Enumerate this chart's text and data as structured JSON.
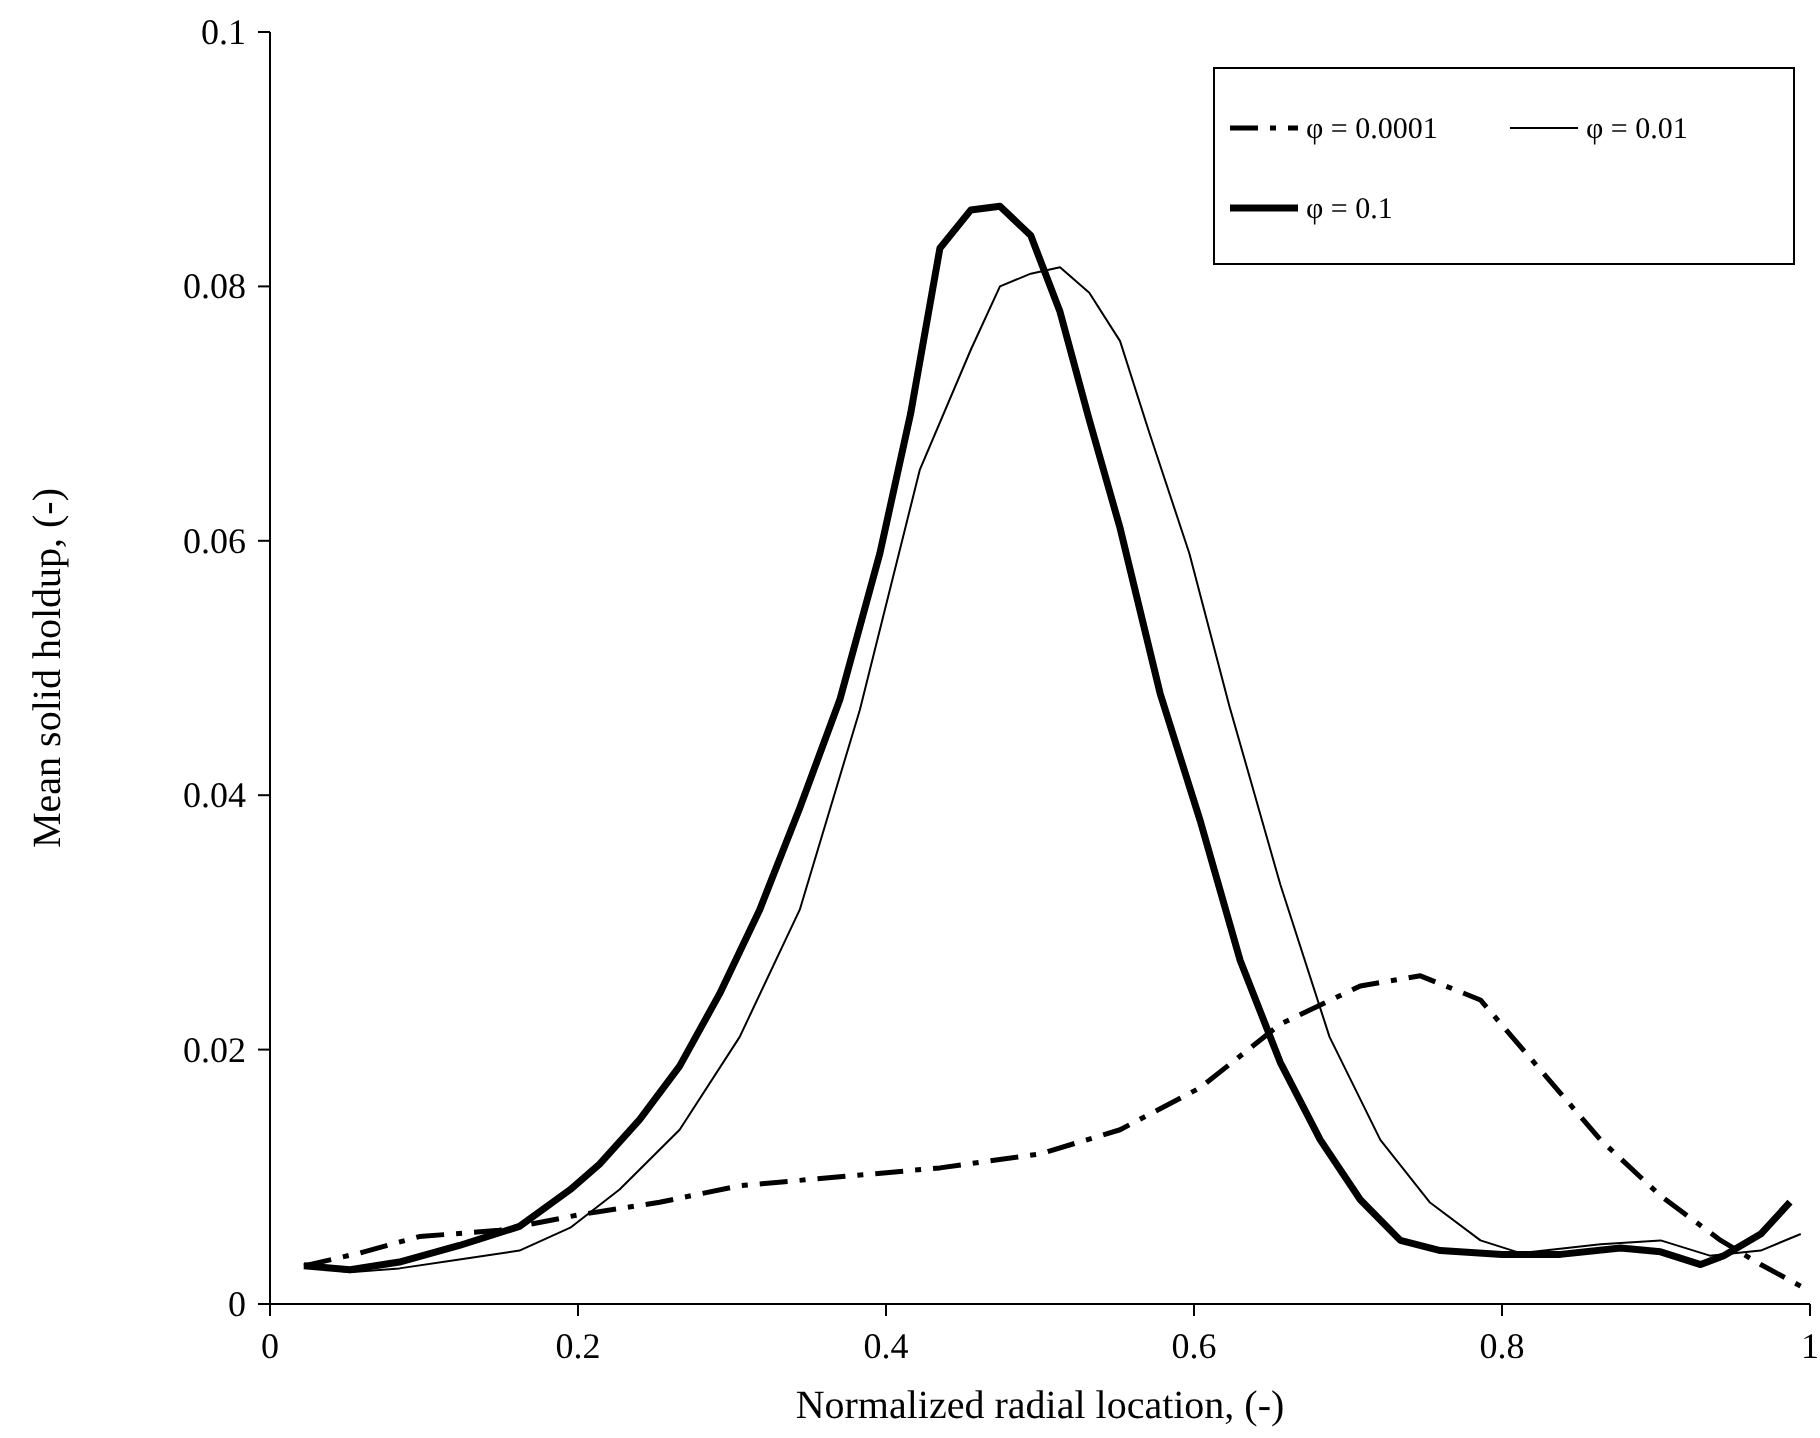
{
  "chart_data": {
    "type": "line",
    "xlabel": "Normalized radial location, (-)",
    "ylabel": "Mean solid holdup, (-)",
    "xlim": [
      0,
      1
    ],
    "xticks": [
      0,
      0.2,
      0.4,
      0.6,
      0.8,
      1
    ],
    "ylim": [
      0,
      0.1
    ],
    "yticks": [
      0,
      0.02,
      0.04,
      0.06,
      0.08,
      0.1
    ],
    "grid": false,
    "legend": "top right",
    "series": [
      {
        "name": "φ = 0.0001",
        "color": "#000000",
        "line_style": "dashed",
        "x": [
          0.022,
          0.058,
          0.097,
          0.149,
          0.2,
          0.253,
          0.305,
          0.37,
          0.435,
          0.5,
          0.552,
          0.604,
          0.656,
          0.708,
          0.747,
          0.786,
          0.825,
          0.864,
          0.903,
          0.942,
          0.968,
          0.994
        ],
        "values": [
          0.003,
          0.004,
          0.0053,
          0.0058,
          0.007,
          0.008,
          0.0093,
          0.01,
          0.0107,
          0.0118,
          0.0137,
          0.017,
          0.022,
          0.025,
          0.0258,
          0.0239,
          0.0184,
          0.0129,
          0.0085,
          0.005,
          0.0031,
          0.0014
        ]
      },
      {
        "name": "φ = 0.01",
        "color": "#000000",
        "line_style": "solid",
        "x": [
          0.022,
          0.052,
          0.084,
          0.123,
          0.162,
          0.195,
          0.227,
          0.266,
          0.305,
          0.344,
          0.383,
          0.422,
          0.455,
          0.474,
          0.494,
          0.513,
          0.532,
          0.552,
          0.571,
          0.597,
          0.623,
          0.656,
          0.688,
          0.721,
          0.753,
          0.786,
          0.812,
          0.864,
          0.903,
          0.935,
          0.968,
          0.994
        ],
        "values": [
          0.003,
          0.0025,
          0.0028,
          0.0035,
          0.0042,
          0.006,
          0.009,
          0.0137,
          0.021,
          0.031,
          0.0467,
          0.0656,
          0.075,
          0.08,
          0.081,
          0.0815,
          0.0795,
          0.0757,
          0.0685,
          0.059,
          0.047,
          0.033,
          0.021,
          0.0129,
          0.008,
          0.005,
          0.004,
          0.0047,
          0.005,
          0.0038,
          0.0042,
          0.0055
        ]
      },
      {
        "name": "φ = 0.1",
        "color": "#000000",
        "line_style": "solid",
        "x": [
          0.022,
          0.052,
          0.084,
          0.123,
          0.162,
          0.195,
          0.214,
          0.24,
          0.266,
          0.292,
          0.318,
          0.344,
          0.37,
          0.396,
          0.416,
          0.435,
          0.455,
          0.474,
          0.494,
          0.513,
          0.532,
          0.552,
          0.578,
          0.604,
          0.63,
          0.656,
          0.682,
          0.708,
          0.734,
          0.76,
          0.8,
          0.838,
          0.877,
          0.903,
          0.929,
          0.944,
          0.968,
          0.987
        ],
        "values": [
          0.003,
          0.0027,
          0.0033,
          0.0046,
          0.0061,
          0.009,
          0.011,
          0.0145,
          0.0187,
          0.0244,
          0.031,
          0.039,
          0.0475,
          0.059,
          0.07,
          0.083,
          0.086,
          0.0863,
          0.084,
          0.078,
          0.0695,
          0.061,
          0.048,
          0.038,
          0.027,
          0.019,
          0.0129,
          0.0082,
          0.005,
          0.0042,
          0.0039,
          0.0039,
          0.0044,
          0.0041,
          0.0031,
          0.0038,
          0.0055,
          0.008
        ]
      }
    ]
  }
}
